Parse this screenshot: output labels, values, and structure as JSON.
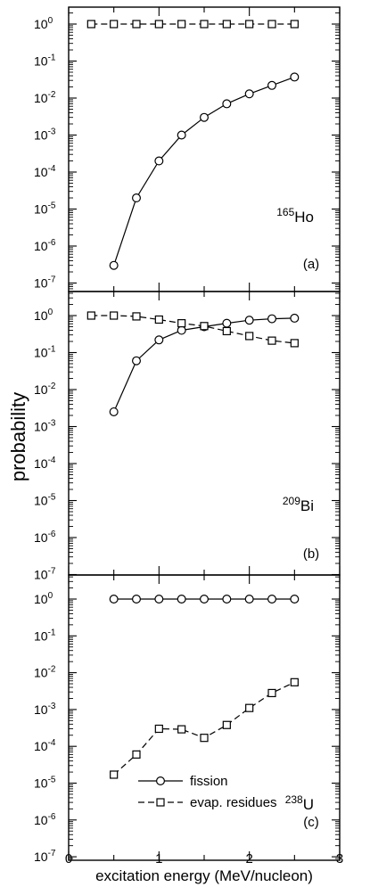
{
  "figure": {
    "ylabel": "probability",
    "xlabel": "excitation energy (MeV/nucleon)"
  },
  "legend": {
    "fission_label": "fission",
    "evap_label": "evap. residues"
  },
  "chart_data": [
    {
      "type": "line",
      "panel_label": "(a)",
      "nucleus": {
        "mass": "165",
        "symbol": "Ho"
      },
      "y_scale": "log",
      "xlim": [
        0,
        3
      ],
      "ylim": [
        1e-07,
        5
      ],
      "series": [
        {
          "name": "fission",
          "marker": "circle",
          "line": "solid",
          "x": [
            0.5,
            0.75,
            1.0,
            1.25,
            1.5,
            1.75,
            2.0,
            2.25,
            2.5
          ],
          "y": [
            3e-07,
            2e-05,
            0.0002,
            0.001,
            0.003,
            0.007,
            0.013,
            0.022,
            0.037
          ]
        },
        {
          "name": "evap. residues",
          "marker": "square",
          "line": "dashed",
          "x": [
            0.25,
            0.5,
            0.75,
            1.0,
            1.25,
            1.5,
            1.75,
            2.0,
            2.25,
            2.5
          ],
          "y": [
            1,
            1,
            1,
            1,
            1,
            1,
            1,
            1,
            1,
            1
          ]
        }
      ]
    },
    {
      "type": "line",
      "panel_label": "(b)",
      "nucleus": {
        "mass": "209",
        "symbol": "Bi"
      },
      "y_scale": "log",
      "xlim": [
        0,
        3
      ],
      "ylim": [
        1e-07,
        5
      ],
      "series": [
        {
          "name": "fission",
          "marker": "circle",
          "line": "solid",
          "x": [
            0.5,
            0.75,
            1.0,
            1.25,
            1.5,
            1.75,
            2.0,
            2.25,
            2.5
          ],
          "y": [
            0.0025,
            0.06,
            0.22,
            0.4,
            0.5,
            0.62,
            0.75,
            0.82,
            0.85
          ]
        },
        {
          "name": "evap. residues",
          "marker": "square",
          "line": "dashed",
          "x": [
            0.25,
            0.5,
            0.75,
            1.0,
            1.25,
            1.5,
            1.75,
            2.0,
            2.25,
            2.5
          ],
          "y": [
            1.0,
            1.0,
            0.95,
            0.78,
            0.62,
            0.52,
            0.38,
            0.28,
            0.21,
            0.18
          ]
        }
      ]
    },
    {
      "type": "line",
      "panel_label": "(c)",
      "nucleus": {
        "mass": "238",
        "symbol": "U"
      },
      "y_scale": "log",
      "xlim": [
        0,
        3
      ],
      "ylim": [
        1e-07,
        5
      ],
      "series": [
        {
          "name": "fission",
          "marker": "circle",
          "line": "solid",
          "x": [
            0.5,
            0.75,
            1.0,
            1.25,
            1.5,
            1.75,
            2.0,
            2.25,
            2.5
          ],
          "y": [
            1,
            1,
            1,
            1,
            1,
            1,
            1,
            1,
            1
          ]
        },
        {
          "name": "evap. residues",
          "marker": "square",
          "line": "dashed",
          "x": [
            0.5,
            0.75,
            1.0,
            1.25,
            1.5,
            1.75,
            2.0,
            2.25,
            2.5
          ],
          "y": [
            1.7e-05,
            6e-05,
            0.0003,
            0.00029,
            0.00017,
            0.00038,
            0.0011,
            0.0028,
            0.0055
          ]
        }
      ]
    }
  ],
  "axes": {
    "y_ticks": [
      {
        "label": "10",
        "exp": "0",
        "value": 1
      },
      {
        "label": "10",
        "exp": "-1",
        "value": 0.1
      },
      {
        "label": "10",
        "exp": "-2",
        "value": 0.01
      },
      {
        "label": "10",
        "exp": "-3",
        "value": 0.001
      },
      {
        "label": "10",
        "exp": "-4",
        "value": 0.0001
      },
      {
        "label": "10",
        "exp": "-5",
        "value": 1e-05
      },
      {
        "label": "10",
        "exp": "-6",
        "value": 1e-06
      },
      {
        "label": "10",
        "exp": "-7",
        "value": 1e-07
      }
    ],
    "x_ticks": [
      "0",
      "1",
      "2",
      "3"
    ]
  }
}
